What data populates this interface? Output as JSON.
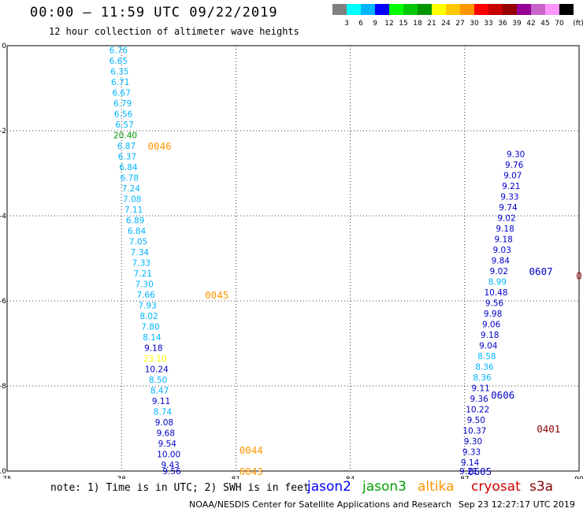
{
  "header": {
    "title": "00:00 – 11:59 UTC 09/22/2019",
    "subtitle": "12 hour collection of altimeter wave heights"
  },
  "colorbar": {
    "unit": "(ft)",
    "bins": [
      {
        "label": "3",
        "color": "#808080"
      },
      {
        "label": "6",
        "color": "#00ffff"
      },
      {
        "label": "9",
        "color": "#00b4ff"
      },
      {
        "label": "12",
        "color": "#0000ff"
      },
      {
        "label": "15",
        "color": "#00ff00"
      },
      {
        "label": "18",
        "color": "#00c800"
      },
      {
        "label": "21",
        "color": "#009600"
      },
      {
        "label": "24",
        "color": "#ffff00"
      },
      {
        "label": "27",
        "color": "#ffc800"
      },
      {
        "label": "30",
        "color": "#ff9600"
      },
      {
        "label": "33",
        "color": "#ff0000"
      },
      {
        "label": "36",
        "color": "#c80000"
      },
      {
        "label": "39",
        "color": "#960000"
      },
      {
        "label": "42",
        "color": "#960096"
      },
      {
        "label": "45",
        "color": "#c864c8"
      },
      {
        "label": "70",
        "color": "#ff96ff"
      },
      {
        "label": "",
        "color": "#000000"
      }
    ]
  },
  "axes": {
    "x_ticks": [
      "75",
      "78",
      "81",
      "84",
      "87",
      "90"
    ],
    "y_ticks": [
      "0",
      "-2",
      "-4",
      "-6",
      "-8",
      "-10"
    ],
    "lon_range": [
      75,
      90
    ],
    "lat_range": [
      -10,
      0
    ]
  },
  "colors": {
    "sky": "#00b4ff",
    "blue": "#0000c8",
    "orange": "#ff9600",
    "yellow": "#ffff00",
    "green": "#009600",
    "darkred": "#8b0000"
  },
  "track_labels": [
    {
      "text": "0046",
      "lon": 79.0,
      "lat": -2.35,
      "color": "#ff9600"
    },
    {
      "text": "0045",
      "lon": 80.5,
      "lat": -5.85,
      "color": "#ff9600"
    },
    {
      "text": "0044",
      "lon": 81.4,
      "lat": -9.5,
      "color": "#ff9600"
    },
    {
      "text": "0043",
      "lon": 81.4,
      "lat": -10.0,
      "color": "#ff9600"
    },
    {
      "text": "0605",
      "lon": 87.4,
      "lat": -10.0,
      "color": "#0000c8"
    },
    {
      "text": "0606",
      "lon": 88.0,
      "lat": -8.2,
      "color": "#0000c8"
    },
    {
      "text": "0607",
      "lon": 89.0,
      "lat": -5.3,
      "color": "#0000c8"
    },
    {
      "text": "0401",
      "lon": 89.2,
      "lat": -9.0,
      "color": "#8b0000"
    },
    {
      "text": "0",
      "lon": 90.0,
      "lat": -5.4,
      "color": "#8b0000"
    }
  ],
  "chart_data": {
    "type": "scatter",
    "title": "00:00 – 11:59 UTC 09/22/2019",
    "xlim": [
      75,
      90
    ],
    "ylim": [
      -10,
      0
    ],
    "tracks": [
      {
        "name": "altika",
        "points": [
          {
            "lon": 77.92,
            "lat": -0.1,
            "v": "6.76",
            "c": "#00b4ff"
          },
          {
            "lon": 77.92,
            "lat": -0.35,
            "v": "6.65",
            "c": "#00b4ff"
          },
          {
            "lon": 77.95,
            "lat": -0.6,
            "v": "6.35",
            "c": "#00b4ff"
          },
          {
            "lon": 77.97,
            "lat": -0.85,
            "v": "6.71",
            "c": "#00b4ff"
          },
          {
            "lon": 78.0,
            "lat": -1.1,
            "v": "6.67",
            "c": "#00b4ff"
          },
          {
            "lon": 78.03,
            "lat": -1.35,
            "v": "6.79",
            "c": "#00b4ff"
          },
          {
            "lon": 78.05,
            "lat": -1.6,
            "v": "6.56",
            "c": "#00b4ff"
          },
          {
            "lon": 78.08,
            "lat": -1.85,
            "v": "6.57",
            "c": "#00b4ff"
          },
          {
            "lon": 78.1,
            "lat": -2.1,
            "v": "20.40",
            "c": "#009600"
          },
          {
            "lon": 78.13,
            "lat": -2.35,
            "v": "6.87",
            "c": "#00b4ff"
          },
          {
            "lon": 78.15,
            "lat": -2.6,
            "v": "6.37",
            "c": "#00b4ff"
          },
          {
            "lon": 78.18,
            "lat": -2.85,
            "v": "6.84",
            "c": "#00b4ff"
          },
          {
            "lon": 78.21,
            "lat": -3.1,
            "v": "6.78",
            "c": "#00b4ff"
          },
          {
            "lon": 78.25,
            "lat": -3.35,
            "v": "7.24",
            "c": "#00b4ff"
          },
          {
            "lon": 78.28,
            "lat": -3.6,
            "v": "7.08",
            "c": "#00b4ff"
          },
          {
            "lon": 78.32,
            "lat": -3.85,
            "v": "7.11",
            "c": "#00b4ff"
          },
          {
            "lon": 78.36,
            "lat": -4.1,
            "v": "6.89",
            "c": "#00b4ff"
          },
          {
            "lon": 78.4,
            "lat": -4.35,
            "v": "6.84",
            "c": "#00b4ff"
          },
          {
            "lon": 78.44,
            "lat": -4.6,
            "v": "7.05",
            "c": "#00b4ff"
          },
          {
            "lon": 78.48,
            "lat": -4.85,
            "v": "7.34",
            "c": "#00b4ff"
          },
          {
            "lon": 78.52,
            "lat": -5.1,
            "v": "7.33",
            "c": "#00b4ff"
          },
          {
            "lon": 78.56,
            "lat": -5.35,
            "v": "7.21",
            "c": "#00b4ff"
          },
          {
            "lon": 78.6,
            "lat": -5.6,
            "v": "7.30",
            "c": "#00b4ff"
          },
          {
            "lon": 78.64,
            "lat": -5.85,
            "v": "7.66",
            "c": "#00b4ff"
          },
          {
            "lon": 78.68,
            "lat": -6.1,
            "v": "7.93",
            "c": "#00b4ff"
          },
          {
            "lon": 78.72,
            "lat": -6.35,
            "v": "8.02",
            "c": "#00b4ff"
          },
          {
            "lon": 78.76,
            "lat": -6.6,
            "v": "7.80",
            "c": "#00b4ff"
          },
          {
            "lon": 78.8,
            "lat": -6.85,
            "v": "8.14",
            "c": "#00b4ff"
          },
          {
            "lon": 78.84,
            "lat": -7.1,
            "v": "9.18",
            "c": "#0000c8"
          },
          {
            "lon": 78.88,
            "lat": -7.35,
            "v": "23.10",
            "c": "#ffff00"
          },
          {
            "lon": 78.92,
            "lat": -7.6,
            "v": "10.24",
            "c": "#0000c8"
          },
          {
            "lon": 78.96,
            "lat": -7.85,
            "v": "8.50",
            "c": "#00b4ff"
          },
          {
            "lon": 79.0,
            "lat": -8.1,
            "v": "8.47",
            "c": "#00b4ff"
          },
          {
            "lon": 79.04,
            "lat": -8.35,
            "v": "9.11",
            "c": "#0000c8"
          },
          {
            "lon": 79.08,
            "lat": -8.6,
            "v": "8.74",
            "c": "#00b4ff"
          },
          {
            "lon": 79.12,
            "lat": -8.85,
            "v": "9.08",
            "c": "#0000c8"
          },
          {
            "lon": 79.16,
            "lat": -9.1,
            "v": "9.68",
            "c": "#0000c8"
          },
          {
            "lon": 79.2,
            "lat": -9.35,
            "v": "9.54",
            "c": "#0000c8"
          },
          {
            "lon": 79.24,
            "lat": -9.6,
            "v": "10.00",
            "c": "#0000c8"
          },
          {
            "lon": 79.28,
            "lat": -9.85,
            "v": "9.43",
            "c": "#0000c8"
          },
          {
            "lon": 79.32,
            "lat": -10.0,
            "v": "9.56",
            "c": "#0000c8"
          }
        ]
      },
      {
        "name": "jason2 0605",
        "points": [
          {
            "lon": 87.1,
            "lat": -10.0,
            "v": "9.21",
            "c": "#0000c8"
          },
          {
            "lon": 87.14,
            "lat": -9.8,
            "v": "9.14",
            "c": "#0000c8"
          },
          {
            "lon": 87.18,
            "lat": -9.55,
            "v": "9.33",
            "c": "#0000c8"
          },
          {
            "lon": 87.22,
            "lat": -9.3,
            "v": "9.30",
            "c": "#0000c8"
          },
          {
            "lon": 87.26,
            "lat": -9.05,
            "v": "10.37",
            "c": "#0000c8"
          },
          {
            "lon": 87.3,
            "lat": -8.8,
            "v": "9.50",
            "c": "#0000c8"
          },
          {
            "lon": 87.34,
            "lat": -8.55,
            "v": "10.22",
            "c": "#0000c8"
          },
          {
            "lon": 87.38,
            "lat": -8.3,
            "v": "9.36",
            "c": "#0000c8"
          },
          {
            "lon": 87.42,
            "lat": -8.05,
            "v": "9.11",
            "c": "#0000c8"
          },
          {
            "lon": 87.46,
            "lat": -7.8,
            "v": "8.36",
            "c": "#00b4ff"
          },
          {
            "lon": 87.52,
            "lat": -7.55,
            "v": "8.36",
            "c": "#00b4ff"
          },
          {
            "lon": 87.58,
            "lat": -7.3,
            "v": "8.58",
            "c": "#00b4ff"
          },
          {
            "lon": 87.62,
            "lat": -7.05,
            "v": "9.04",
            "c": "#0000c8"
          },
          {
            "lon": 87.66,
            "lat": -6.8,
            "v": "9.18",
            "c": "#0000c8"
          },
          {
            "lon": 87.7,
            "lat": -6.55,
            "v": "9.06",
            "c": "#0000c8"
          },
          {
            "lon": 87.74,
            "lat": -6.3,
            "v": "9.98",
            "c": "#0000c8"
          },
          {
            "lon": 87.78,
            "lat": -6.05,
            "v": "9.56",
            "c": "#0000c8"
          },
          {
            "lon": 87.82,
            "lat": -5.8,
            "v": "10.48",
            "c": "#0000c8"
          },
          {
            "lon": 87.86,
            "lat": -5.55,
            "v": "8.99",
            "c": "#00b4ff"
          },
          {
            "lon": 87.9,
            "lat": -5.3,
            "v": "9.02",
            "c": "#0000c8"
          },
          {
            "lon": 87.94,
            "lat": -5.05,
            "v": "9.84",
            "c": "#0000c8"
          },
          {
            "lon": 87.98,
            "lat": -4.8,
            "v": "9.03",
            "c": "#0000c8"
          },
          {
            "lon": 88.02,
            "lat": -4.55,
            "v": "9.18",
            "c": "#0000c8"
          },
          {
            "lon": 88.06,
            "lat": -4.3,
            "v": "9.18",
            "c": "#0000c8"
          },
          {
            "lon": 88.1,
            "lat": -4.05,
            "v": "9.02",
            "c": "#0000c8"
          },
          {
            "lon": 88.14,
            "lat": -3.8,
            "v": "9.74",
            "c": "#0000c8"
          },
          {
            "lon": 88.18,
            "lat": -3.55,
            "v": "9.33",
            "c": "#0000c8"
          },
          {
            "lon": 88.22,
            "lat": -3.3,
            "v": "9.21",
            "c": "#0000c8"
          },
          {
            "lon": 88.26,
            "lat": -3.05,
            "v": "9.07",
            "c": "#0000c8"
          },
          {
            "lon": 88.3,
            "lat": -2.8,
            "v": "9.76",
            "c": "#0000c8"
          },
          {
            "lon": 88.34,
            "lat": -2.55,
            "v": "9.30",
            "c": "#0000c8"
          }
        ]
      }
    ]
  },
  "note": "note: 1) Time is in UTC; 2) SWH is in feet",
  "legend": [
    {
      "label": "jason2",
      "color": "#0000ff"
    },
    {
      "label": "jason3",
      "color": "#00a000"
    },
    {
      "label": "altika",
      "color": "#ff9600"
    },
    {
      "label": "cryosat",
      "color": "#d00000"
    },
    {
      "label": "s3a",
      "color": "#8b0000"
    }
  ],
  "footer": {
    "credit": "NOAA/NESDIS Center for Satellite Applications and Research",
    "timestamp": "Sep 23 12:27:17 UTC 2019"
  }
}
